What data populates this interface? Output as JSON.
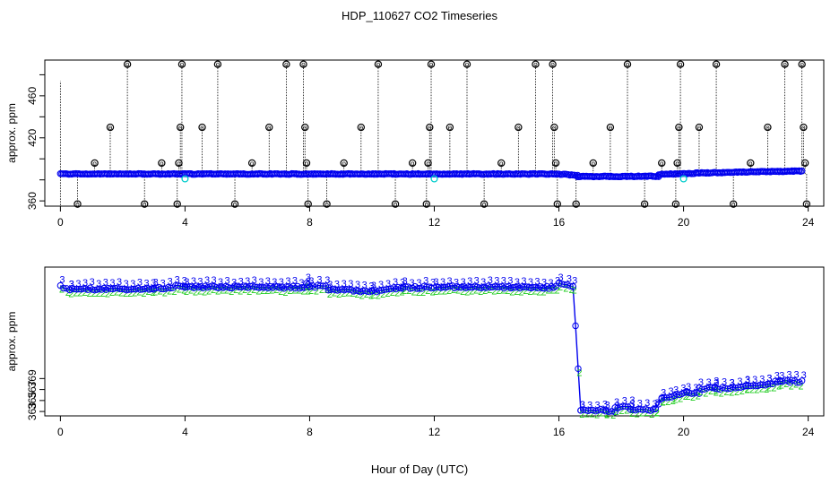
{
  "chart_data": {
    "type": "scatter",
    "title": "HDP_110627  CO2 Timeseries",
    "xlabel": "Hour of Day (UTC)",
    "colors": {
      "blue": "#0000ee",
      "cyan": "#00cccc",
      "green": "#22cc22",
      "black": "#000000"
    },
    "panels": [
      {
        "id": "top",
        "ylabel": "approx. ppm",
        "xlim": [
          -0.5,
          24.5
        ],
        "ylim": [
          355,
          494
        ],
        "xticks": [
          0,
          4,
          8,
          12,
          16,
          20,
          24
        ],
        "yticks": [
          360,
          380,
          400,
          420,
          440,
          460,
          480
        ],
        "ytick_labels": [
          "360",
          "",
          "",
          "420",
          "",
          "460",
          ""
        ],
        "segments": [
          {
            "x0": 0.0,
            "x1": 15.95,
            "y0": 385.6,
            "y1": 385.6
          },
          {
            "x0": 16.0,
            "x1": 16.6,
            "y0": 385.5,
            "y1": 384.2
          },
          {
            "x0": 16.6,
            "x1": 19.2,
            "y0": 383.2,
            "y1": 383.4
          },
          {
            "x0": 19.2,
            "x1": 20.4,
            "y0": 385.2,
            "y1": 386.2
          },
          {
            "x0": 20.4,
            "x1": 23.8,
            "y0": 386.5,
            "y1": 388.5
          }
        ],
        "spike_label": "o",
        "spikes": [
          {
            "x": 0.55,
            "y": 357
          },
          {
            "x": 1.1,
            "y": 396
          },
          {
            "x": 1.6,
            "y": 430
          },
          {
            "x": 2.15,
            "y": 490
          },
          {
            "x": 2.7,
            "y": 357
          },
          {
            "x": 3.25,
            "y": 396
          },
          {
            "x": 3.75,
            "y": 357
          },
          {
            "x": 3.8,
            "y": 396
          },
          {
            "x": 3.85,
            "y": 430
          },
          {
            "x": 3.9,
            "y": 490
          },
          {
            "x": 4.55,
            "y": 430
          },
          {
            "x": 5.05,
            "y": 490
          },
          {
            "x": 5.6,
            "y": 357
          },
          {
            "x": 6.15,
            "y": 396
          },
          {
            "x": 6.7,
            "y": 430
          },
          {
            "x": 7.25,
            "y": 490
          },
          {
            "x": 7.8,
            "y": 490
          },
          {
            "x": 7.85,
            "y": 430
          },
          {
            "x": 7.9,
            "y": 396
          },
          {
            "x": 7.95,
            "y": 357
          },
          {
            "x": 8.55,
            "y": 357
          },
          {
            "x": 9.1,
            "y": 396
          },
          {
            "x": 9.65,
            "y": 430
          },
          {
            "x": 10.2,
            "y": 490
          },
          {
            "x": 10.75,
            "y": 357
          },
          {
            "x": 11.3,
            "y": 396
          },
          {
            "x": 11.75,
            "y": 357
          },
          {
            "x": 11.8,
            "y": 396
          },
          {
            "x": 11.85,
            "y": 430
          },
          {
            "x": 11.9,
            "y": 490
          },
          {
            "x": 12.5,
            "y": 430
          },
          {
            "x": 13.05,
            "y": 490
          },
          {
            "x": 13.6,
            "y": 357
          },
          {
            "x": 14.15,
            "y": 396
          },
          {
            "x": 14.7,
            "y": 430
          },
          {
            "x": 15.25,
            "y": 490
          },
          {
            "x": 15.8,
            "y": 490
          },
          {
            "x": 15.85,
            "y": 430
          },
          {
            "x": 15.9,
            "y": 396
          },
          {
            "x": 15.95,
            "y": 357
          },
          {
            "x": 16.55,
            "y": 357
          },
          {
            "x": 17.1,
            "y": 396
          },
          {
            "x": 17.65,
            "y": 430
          },
          {
            "x": 18.2,
            "y": 490
          },
          {
            "x": 18.75,
            "y": 357
          },
          {
            "x": 19.3,
            "y": 396
          },
          {
            "x": 19.75,
            "y": 357
          },
          {
            "x": 19.8,
            "y": 396
          },
          {
            "x": 19.85,
            "y": 430
          },
          {
            "x": 19.9,
            "y": 490
          },
          {
            "x": 20.5,
            "y": 430
          },
          {
            "x": 21.05,
            "y": 490
          },
          {
            "x": 21.6,
            "y": 357
          },
          {
            "x": 22.15,
            "y": 396
          },
          {
            "x": 22.7,
            "y": 430
          },
          {
            "x": 23.25,
            "y": 490
          },
          {
            "x": 23.8,
            "y": 490
          },
          {
            "x": 23.85,
            "y": 430
          },
          {
            "x": 23.9,
            "y": 396
          },
          {
            "x": 23.95,
            "y": 357
          }
        ],
        "cyan_markers": [
          {
            "x": 4.0,
            "y": 381
          },
          {
            "x": 12.0,
            "y": 381
          },
          {
            "x": 20.0,
            "y": 381
          }
        ]
      },
      {
        "id": "bottom",
        "ylabel": "approx. ppm",
        "xlim": [
          -0.5,
          24.5
        ],
        "ylim": [
          362.2,
          389.3
        ],
        "xticks": [
          0,
          4,
          8,
          12,
          16,
          20,
          24
        ],
        "yticks": [
          363,
          365,
          367,
          369
        ],
        "point_label_primary": "3",
        "point_label_secondary": "2",
        "segments": [
          {
            "x0": 0.0,
            "x1": 0.3,
            "y0": 385.8,
            "y1": 385.0
          },
          {
            "x0": 0.3,
            "x1": 3.0,
            "y0": 385.3,
            "y1": 385.3
          },
          {
            "x0": 3.0,
            "x1": 4.0,
            "y0": 385.3,
            "y1": 385.9
          },
          {
            "x0": 4.0,
            "x1": 7.9,
            "y0": 385.7,
            "y1": 385.6
          },
          {
            "x0": 7.9,
            "x1": 8.0,
            "y0": 386.2,
            "y1": 385.9
          },
          {
            "x0": 8.0,
            "x1": 8.6,
            "y0": 385.9,
            "y1": 385.6
          },
          {
            "x0": 8.6,
            "x1": 10.0,
            "y0": 385.3,
            "y1": 384.9
          },
          {
            "x0": 10.0,
            "x1": 11.0,
            "y0": 384.9,
            "y1": 385.6
          },
          {
            "x0": 11.0,
            "x1": 11.9,
            "y0": 385.6,
            "y1": 385.6
          },
          {
            "x0": 12.0,
            "x1": 15.9,
            "y0": 385.7,
            "y1": 385.6
          },
          {
            "x0": 16.0,
            "x1": 16.45,
            "y0": 386.3,
            "y1": 385.9
          },
          {
            "x0": 16.45,
            "x1": 16.7,
            "y0": 385.9,
            "y1": 363.4
          },
          {
            "x0": 16.7,
            "x1": 17.5,
            "y0": 363.3,
            "y1": 363.2
          },
          {
            "x0": 17.5,
            "x1": 17.8,
            "y0": 363.0,
            "y1": 363.0
          },
          {
            "x0": 17.8,
            "x1": 18.3,
            "y0": 363.7,
            "y1": 363.9
          },
          {
            "x0": 18.3,
            "x1": 19.1,
            "y0": 363.4,
            "y1": 363.3
          },
          {
            "x0": 19.1,
            "x1": 19.3,
            "y0": 363.5,
            "y1": 365.4
          },
          {
            "x0": 19.3,
            "x1": 19.7,
            "y0": 365.4,
            "y1": 365.8
          },
          {
            "x0": 19.7,
            "x1": 20.1,
            "y0": 365.8,
            "y1": 366.8
          },
          {
            "x0": 20.1,
            "x1": 20.5,
            "y0": 366.6,
            "y1": 366.3
          },
          {
            "x0": 20.5,
            "x1": 21.0,
            "y0": 367.2,
            "y1": 367.3
          },
          {
            "x0": 21.0,
            "x1": 21.5,
            "y0": 367.3,
            "y1": 367.1
          },
          {
            "x0": 21.5,
            "x1": 22.0,
            "y0": 367.3,
            "y1": 367.6
          },
          {
            "x0": 22.0,
            "x1": 22.7,
            "y0": 367.6,
            "y1": 368.0
          },
          {
            "x0": 22.7,
            "x1": 23.1,
            "y0": 368.0,
            "y1": 368.6
          },
          {
            "x0": 23.1,
            "x1": 23.8,
            "y0": 368.6,
            "y1": 368.4
          }
        ]
      }
    ]
  }
}
